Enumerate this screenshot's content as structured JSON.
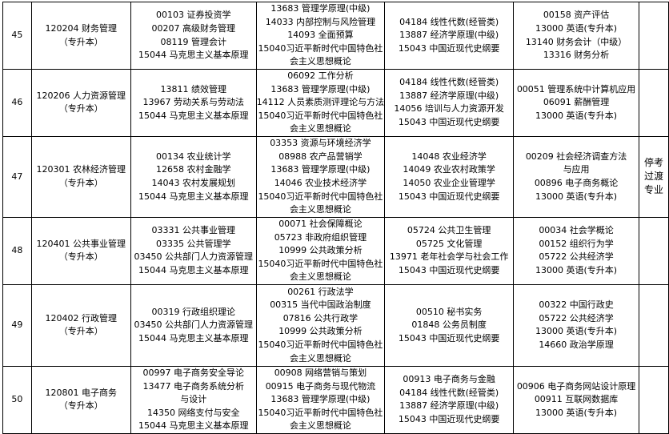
{
  "rows": [
    {
      "no": "45",
      "major": [
        "120204 财务管理",
        "（专升本）"
      ],
      "c1": [
        "00103 证券投资学",
        "00207 高级财务管理",
        "08119 管理会计",
        "15044 马克思主义基本原理"
      ],
      "c2": [
        "13683 管理学原理(中级)",
        "14033 内部控制与风险管理",
        "14093 全面预算",
        "15040习近平新时代中国特色社",
        "会主义思想概论"
      ],
      "c3": [
        "04184 线性代数(经管类)",
        "13887 经济学原理(中级)",
        "15043 中国近现代史纲要"
      ],
      "c4": [
        "00158 资产评估",
        "13000 英语(专升本)",
        "13140 财务会计（中级）",
        "13316 财务分析"
      ],
      "note": []
    },
    {
      "no": "46",
      "major": [
        "120206 人力资源管理",
        "（专升本）"
      ],
      "c1": [
        "13811 绩效管理",
        "13967 劳动关系与劳动法",
        "15044 马克思主义基本原理"
      ],
      "c2": [
        "06092 工作分析",
        "13683 管理学原理(中级)",
        "14112 人员素质测评理论与方法",
        "15040习近平新时代中国特色社",
        "会主义思想概论"
      ],
      "c3": [
        "04184 线性代数(经管类)",
        "13887 经济学原理(中级)",
        "14056 培训与人力资源开发",
        "15043 中国近现代史纲要"
      ],
      "c4": [
        "00051 管理系统中计算机应用",
        "06091 薪酬管理",
        "13000 英语(专升本)"
      ],
      "note": []
    },
    {
      "no": "47",
      "major": [
        "120301 农林经济管理",
        "（专升本）"
      ],
      "c1": [
        "00134 农业统计学",
        "12658 农村金融学",
        "14043 农村发展规划",
        "15044 马克思主义基本原理"
      ],
      "c2": [
        "03353 资源与环境经济学",
        "08988 农产品营销学",
        "13683 管理学原理(中级)",
        "14046 农业技术经济学",
        "15040习近平新时代中国特色社",
        "会主义思想概论"
      ],
      "c3": [
        "14048 农业经济学",
        "14049 农业农村政策学",
        "14050 农业企业管理学",
        "15043 中国近现代史纲要"
      ],
      "c4": [
        "00209 社会经济调查方法",
        "与应用",
        "00896 电子商务概论",
        "13000 英语(专升本)"
      ],
      "note": [
        "停考",
        "过渡",
        "专业"
      ]
    },
    {
      "no": "48",
      "major": [
        "120401 公共事业管理",
        "（专升本）"
      ],
      "c1": [
        "03331 公共事业管理",
        "03335 公共管理学",
        "03450 公共部门人力资源管理",
        "15044 马克思主义基本原理"
      ],
      "c2": [
        "00071 社会保障概论",
        "05723 非政府组织管理",
        "10999 公共政策分析",
        "15040习近平新时代中国特色社",
        "会主义思想概论"
      ],
      "c3": [
        "05724 公共卫生管理",
        "05725 文化管理",
        "13971 老年社会学与社会工作",
        "15043 中国近现代史纲要"
      ],
      "c4": [
        "00034 社会学概论",
        "00152 组织行为学",
        "05722 公共经济学",
        "13000 英语(专升本)"
      ],
      "note": []
    },
    {
      "no": "49",
      "major": [
        "120402  行政管理",
        "（专升本）"
      ],
      "c1": [
        "00319 行政组织理论",
        "03450 公共部门人力资源管理",
        "15044 马克思主义基本原理"
      ],
      "c2": [
        "00261 行政法学",
        "00315 当代中国政治制度",
        "07816 公共行政学",
        "10999 公共政策分析",
        "15040习近平新时代中国特色社",
        "会主义思想概论"
      ],
      "c3": [
        "00510 秘书实务",
        "01848 公务员制度",
        "15043 中国近现代史纲要"
      ],
      "c4": [
        "00322 中国行政史",
        "05722 公共经济学",
        "13000 英语(专升本)",
        "14660 政治学原理"
      ],
      "note": []
    },
    {
      "no": "50",
      "major": [
        "120801  电子商务",
        "（专升本）"
      ],
      "c1": [
        "00997 电子商务安全导论",
        "13477 电子商务系统分析",
        "与设计",
        "14350 网络支付与安全",
        "15044 马克思主义基本原理"
      ],
      "c2": [
        "00908 网络营销与策划",
        "00915 电子商务与现代物流",
        "13683 管理学原理(中级)",
        "15040习近平新时代中国特色社",
        "会主义思想概论"
      ],
      "c3": [
        "00913 电子商务与金融",
        "04184 线性代数(经管类)",
        "13887 经济学原理(中级)",
        "15043 中国近现代史纲要"
      ],
      "c4": [
        "00906 电子商务网站设计原理",
        "00911 互联网数据库",
        "13000 英语(专升本)"
      ],
      "note": []
    }
  ]
}
